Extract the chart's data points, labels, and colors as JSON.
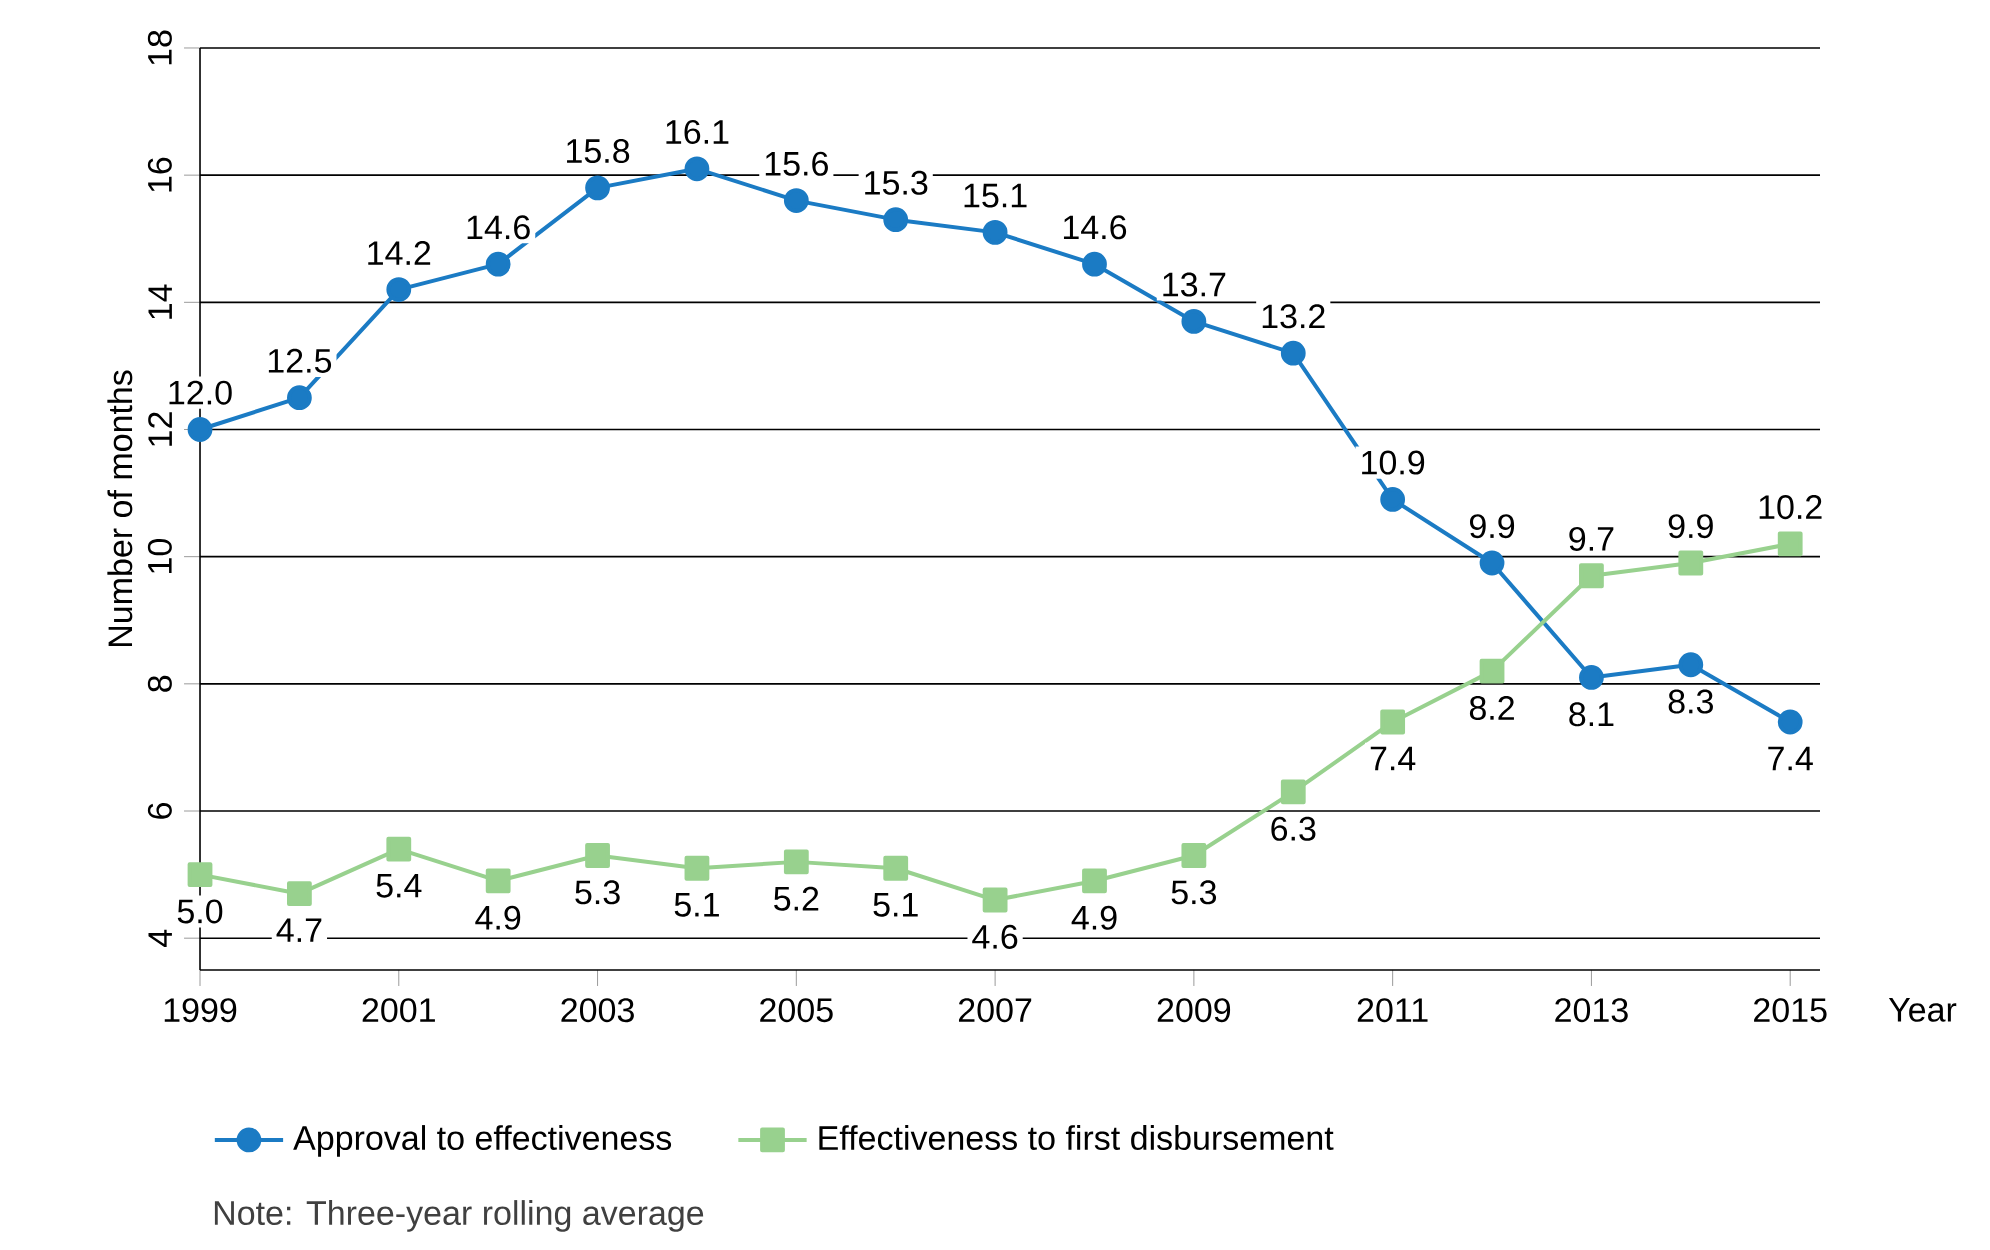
{
  "chart_data": {
    "type": "line",
    "xlabel": "Year",
    "ylabel": "Number of months",
    "x": [
      1999,
      2000,
      2001,
      2002,
      2003,
      2004,
      2005,
      2006,
      2007,
      2008,
      2009,
      2010,
      2011,
      2012,
      2013,
      2014,
      2015
    ],
    "series": [
      {
        "name": "Approval to effectiveness",
        "color": "#1b7bc4",
        "marker": "circle",
        "values": [
          12.0,
          12.5,
          14.2,
          14.6,
          15.8,
          16.1,
          15.6,
          15.3,
          15.1,
          14.6,
          13.7,
          13.2,
          10.9,
          9.9,
          8.1,
          8.3,
          7.4
        ],
        "value_labels": [
          "12.0",
          "12.5",
          "14.2",
          "14.6",
          "15.8",
          "16.1",
          "15.6",
          "15.3",
          "15.1",
          "14.6",
          "13.7",
          "13.2",
          "10.9",
          "9.9",
          "8.1",
          "8.3",
          "7.4"
        ]
      },
      {
        "name": "Effectiveness to first disbursement",
        "color": "#98d18e",
        "marker": "square",
        "values": [
          5.0,
          4.7,
          5.4,
          4.9,
          5.3,
          5.1,
          5.2,
          5.1,
          4.6,
          4.9,
          5.3,
          6.3,
          7.4,
          8.2,
          9.7,
          9.9,
          10.2
        ],
        "value_labels": [
          "5.0",
          "4.7",
          "5.4",
          "4.9",
          "5.3",
          "5.1",
          "5.2",
          "5.1",
          "4.6",
          "4.9",
          "5.3",
          "6.3",
          "7.4",
          "8.2",
          "9.7",
          "9.9",
          "10.2"
        ]
      }
    ],
    "xlim": [
      1999,
      2015.3
    ],
    "ylim": [
      3.5,
      18
    ],
    "xticks": [
      1999,
      2001,
      2003,
      2005,
      2007,
      2009,
      2011,
      2013,
      2015
    ],
    "yticks": [
      4,
      6,
      8,
      10,
      12,
      14,
      16,
      18
    ],
    "grid": "y",
    "legend": "bottom",
    "line_style": "solid",
    "annotations": [
      "Note: Three-year rolling average"
    ]
  }
}
